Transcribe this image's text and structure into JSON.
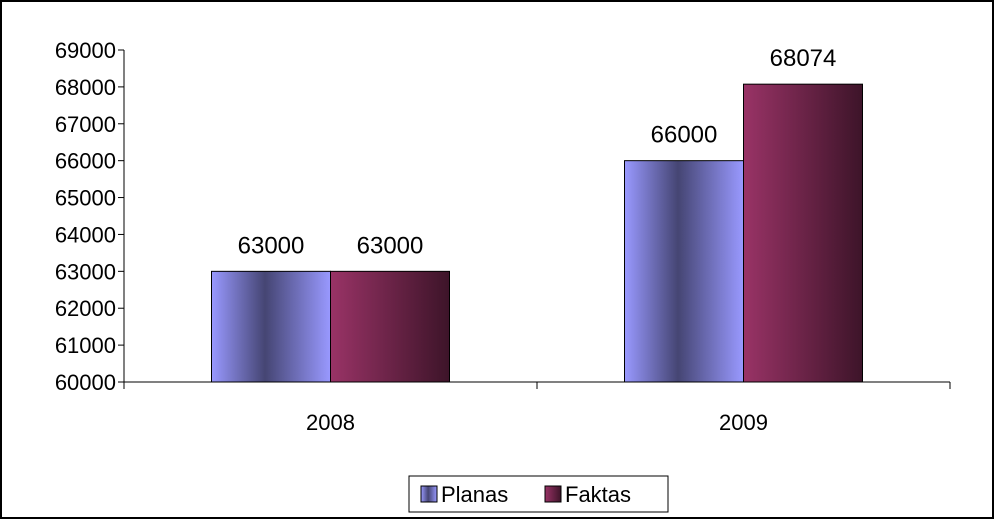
{
  "chart_data": {
    "type": "bar",
    "categories": [
      "2008",
      "2009"
    ],
    "series": [
      {
        "name": "Planas",
        "values": [
          63000,
          66000
        ],
        "color": "#9999ff"
      },
      {
        "name": "Faktas",
        "values": [
          63000,
          68074
        ],
        "color": "#993366"
      }
    ],
    "ylim": [
      60000,
      69000
    ],
    "yticks": [
      60000,
      61000,
      62000,
      63000,
      64000,
      65000,
      66000,
      67000,
      68000,
      69000
    ],
    "data_labels": true,
    "grid": false,
    "legend_position": "bottom",
    "title": "",
    "xlabel": "",
    "ylabel": ""
  }
}
